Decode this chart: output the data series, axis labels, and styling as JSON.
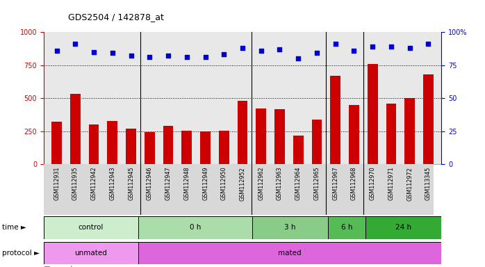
{
  "title": "GDS2504 / 142878_at",
  "samples": [
    "GSM112931",
    "GSM112935",
    "GSM112942",
    "GSM112943",
    "GSM112945",
    "GSM112946",
    "GSM112947",
    "GSM112948",
    "GSM112949",
    "GSM112950",
    "GSM112952",
    "GSM112962",
    "GSM112963",
    "GSM112964",
    "GSM112965",
    "GSM112967",
    "GSM112968",
    "GSM112970",
    "GSM112971",
    "GSM112972",
    "GSM113345"
  ],
  "counts": [
    320,
    530,
    300,
    325,
    270,
    245,
    290,
    255,
    250,
    255,
    480,
    420,
    415,
    215,
    340,
    670,
    450,
    760,
    460,
    500,
    680
  ],
  "percentiles": [
    86,
    91,
    85,
    84,
    82,
    81,
    82,
    81,
    81,
    83,
    88,
    86,
    87,
    80,
    84,
    91,
    86,
    89,
    89,
    88,
    91
  ],
  "bar_color": "#cc0000",
  "dot_color": "#0000cc",
  "time_groups": [
    {
      "label": "control",
      "start": 0,
      "end": 5
    },
    {
      "label": "0 h",
      "start": 5,
      "end": 11
    },
    {
      "label": "3 h",
      "start": 11,
      "end": 15
    },
    {
      "label": "6 h",
      "start": 15,
      "end": 17
    },
    {
      "label": "24 h",
      "start": 17,
      "end": 21
    }
  ],
  "time_colors": [
    "#cceecc",
    "#aaddaa",
    "#88cc88",
    "#55bb55",
    "#33aa33"
  ],
  "protocol_groups": [
    {
      "label": "unmated",
      "start": 0,
      "end": 5
    },
    {
      "label": "mated",
      "start": 5,
      "end": 21
    }
  ],
  "protocol_colors": [
    "#ee99ee",
    "#dd66dd"
  ],
  "ylim_left": [
    0,
    1000
  ],
  "ylim_right": [
    0,
    100
  ],
  "yticks_left": [
    0,
    250,
    500,
    750,
    1000
  ],
  "ytick_labels_left": [
    "0",
    "250",
    "500",
    "750",
    "1000"
  ],
  "yticks_right": [
    0,
    25,
    50,
    75,
    100
  ],
  "ytick_labels_right": [
    "0",
    "25",
    "50",
    "75",
    "100%"
  ],
  "grid_values": [
    250,
    500,
    750
  ],
  "background_color": "#ffffff",
  "plot_bg_color": "#e8e8e8",
  "legend_count_color": "#cc0000",
  "legend_dot_color": "#0000cc"
}
